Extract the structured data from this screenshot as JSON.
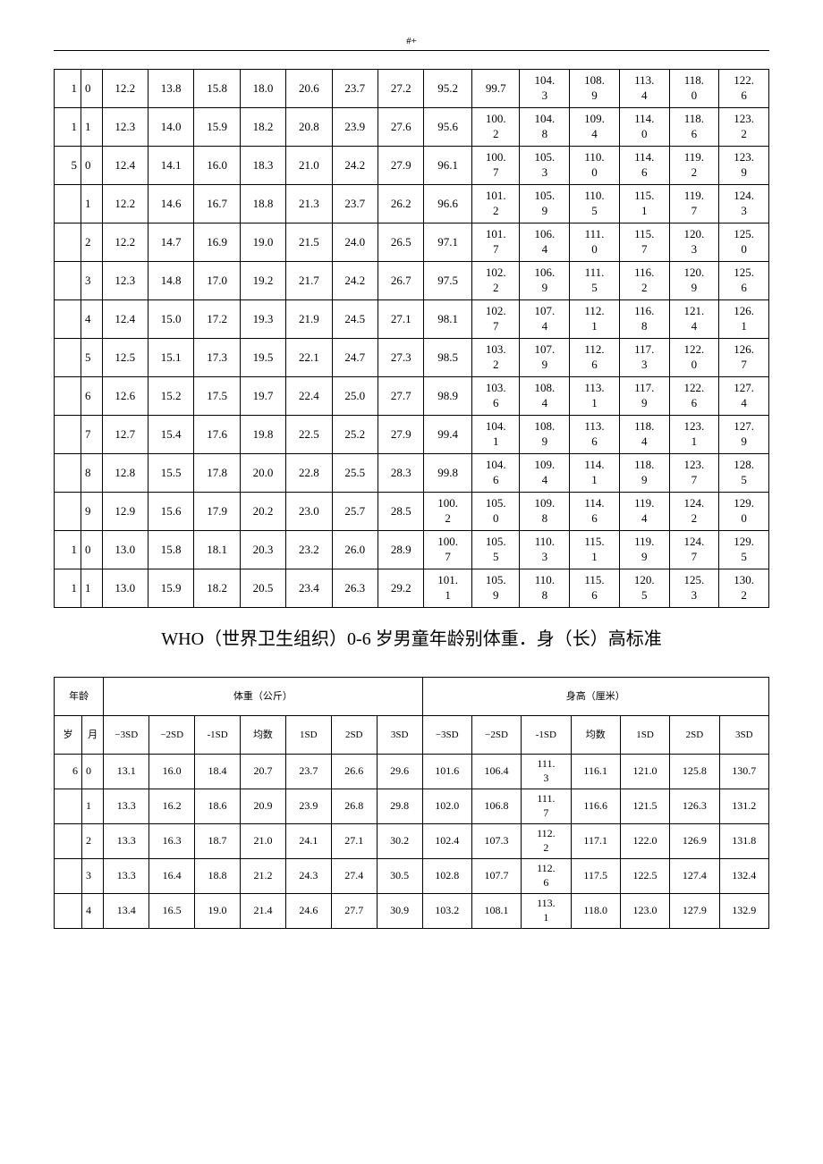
{
  "header_mark": "#+",
  "title": "WHO（世界卫生组织）0-6 岁男童年龄别体重．身（长）高标准",
  "table1": {
    "rows": [
      {
        "y": "1",
        "m": "0",
        "c": [
          "12.2",
          "13.8",
          "15.8",
          "18.0",
          "20.6",
          "23.7",
          "27.2",
          "95.2",
          "99.7",
          "104.3",
          "108.9",
          "113.4",
          "118.0",
          "122.6"
        ]
      },
      {
        "y": "1",
        "m": "1",
        "c": [
          "12.3",
          "14.0",
          "15.9",
          "18.2",
          "20.8",
          "23.9",
          "27.6",
          "95.6",
          "100.2",
          "104.8",
          "109.4",
          "114.0",
          "118.6",
          "123.2"
        ]
      },
      {
        "y": "5",
        "m": "0",
        "c": [
          "12.4",
          "14.1",
          "16.0",
          "18.3",
          "21.0",
          "24.2",
          "27.9",
          "96.1",
          "100.7",
          "105.3",
          "110.0",
          "114.6",
          "119.2",
          "123.9"
        ]
      },
      {
        "y": "",
        "m": "1",
        "c": [
          "12.2",
          "14.6",
          "16.7",
          "18.8",
          "21.3",
          "23.7",
          "26.2",
          "96.6",
          "101.2",
          "105.9",
          "110.5",
          "115.1",
          "119.7",
          "124.3"
        ]
      },
      {
        "y": "",
        "m": "2",
        "c": [
          "12.2",
          "14.7",
          "16.9",
          "19.0",
          "21.5",
          "24.0",
          "26.5",
          "97.1",
          "101.7",
          "106.4",
          "111.0",
          "115.7",
          "120.3",
          "125.0"
        ]
      },
      {
        "y": "",
        "m": "3",
        "c": [
          "12.3",
          "14.8",
          "17.0",
          "19.2",
          "21.7",
          "24.2",
          "26.7",
          "97.5",
          "102.2",
          "106.9",
          "111.5",
          "116.2",
          "120.9",
          "125.6"
        ]
      },
      {
        "y": "",
        "m": "4",
        "c": [
          "12.4",
          "15.0",
          "17.2",
          "19.3",
          "21.9",
          "24.5",
          "27.1",
          "98.1",
          "102.7",
          "107.4",
          "112.1",
          "116.8",
          "121.4",
          "126.1"
        ]
      },
      {
        "y": "",
        "m": "5",
        "c": [
          "12.5",
          "15.1",
          "17.3",
          "19.5",
          "22.1",
          "24.7",
          "27.3",
          "98.5",
          "103.2",
          "107.9",
          "112.6",
          "117.3",
          "122.0",
          "126.7"
        ]
      },
      {
        "y": "",
        "m": "6",
        "c": [
          "12.6",
          "15.2",
          "17.5",
          "19.7",
          "22.4",
          "25.0",
          "27.7",
          "98.9",
          "103.6",
          "108.4",
          "113.1",
          "117.9",
          "122.6",
          "127.4"
        ]
      },
      {
        "y": "",
        "m": "7",
        "c": [
          "12.7",
          "15.4",
          "17.6",
          "19.8",
          "22.5",
          "25.2",
          "27.9",
          "99.4",
          "104.1",
          "108.9",
          "113.6",
          "118.4",
          "123.1",
          "127.9"
        ]
      },
      {
        "y": "",
        "m": "8",
        "c": [
          "12.8",
          "15.5",
          "17.8",
          "20.0",
          "22.8",
          "25.5",
          "28.3",
          "99.8",
          "104.6",
          "109.4",
          "114.1",
          "118.9",
          "123.7",
          "128.5"
        ]
      },
      {
        "y": "",
        "m": "9",
        "c": [
          "12.9",
          "15.6",
          "17.9",
          "20.2",
          "23.0",
          "25.7",
          "28.5",
          "100.2",
          "105.0",
          "109.8",
          "114.6",
          "119.4",
          "124.2",
          "129.0"
        ]
      },
      {
        "y": "1",
        "m": "0",
        "c": [
          "13.0",
          "15.8",
          "18.1",
          "20.3",
          "23.2",
          "26.0",
          "28.9",
          "100.7",
          "105.5",
          "110.3",
          "115.1",
          "119.9",
          "124.7",
          "129.5"
        ]
      },
      {
        "y": "1",
        "m": "1",
        "c": [
          "13.0",
          "15.9",
          "18.2",
          "20.5",
          "23.4",
          "26.3",
          "29.2",
          "101.1",
          "105.9",
          "110.8",
          "115.6",
          "120.5",
          "125.3",
          "130.2"
        ]
      }
    ]
  },
  "table2": {
    "hdr_age": "年龄",
    "hdr_weight": "体重（公斤）",
    "hdr_height": "身高（厘米）",
    "hdr_y": "岁",
    "hdr_m": "月",
    "sd": [
      "−3SD",
      "−2SD",
      "-1SD",
      "均数",
      "1SD",
      "2SD",
      "3SD",
      "−3SD",
      "−2SD",
      "-1SD",
      "均数",
      "1SD",
      "2SD",
      "3SD"
    ],
    "rows": [
      {
        "y": "6",
        "m": "0",
        "c": [
          "13.1",
          "16.0",
          "18.4",
          "20.7",
          "23.7",
          "26.6",
          "29.6",
          "101.6",
          "106.4",
          "111.3",
          "116.1",
          "121.0",
          "125.8",
          "130.7"
        ]
      },
      {
        "y": "",
        "m": "1",
        "c": [
          "13.3",
          "16.2",
          "18.6",
          "20.9",
          "23.9",
          "26.8",
          "29.8",
          "102.0",
          "106.8",
          "111.7",
          "116.6",
          "121.5",
          "126.3",
          "131.2"
        ]
      },
      {
        "y": "",
        "m": "2",
        "c": [
          "13.3",
          "16.3",
          "18.7",
          "21.0",
          "24.1",
          "27.1",
          "30.2",
          "102.4",
          "107.3",
          "112.2",
          "117.1",
          "122.0",
          "126.9",
          "131.8"
        ]
      },
      {
        "y": "",
        "m": "3",
        "c": [
          "13.3",
          "16.4",
          "18.8",
          "21.2",
          "24.3",
          "27.4",
          "30.5",
          "102.8",
          "107.7",
          "112.6",
          "117.5",
          "122.5",
          "127.4",
          "132.4"
        ]
      },
      {
        "y": "",
        "m": "4",
        "c": [
          "13.4",
          "16.5",
          "19.0",
          "21.4",
          "24.6",
          "27.7",
          "30.9",
          "103.2",
          "108.1",
          "113.1",
          "118.0",
          "123.0",
          "127.9",
          "132.9"
        ]
      }
    ]
  }
}
